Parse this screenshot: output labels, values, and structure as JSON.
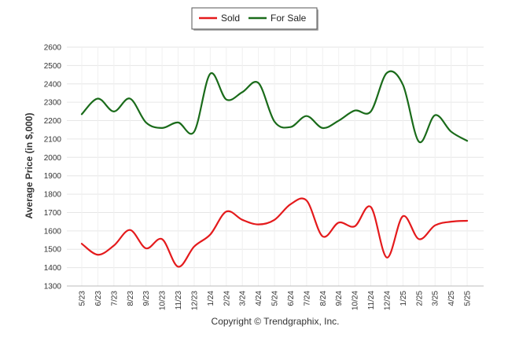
{
  "chart_data": {
    "type": "line",
    "ylabel": "Average Price (in $,000)",
    "ylim": [
      1300,
      2600
    ],
    "yticks": [
      1300,
      1400,
      1500,
      1600,
      1700,
      1800,
      1900,
      2000,
      2100,
      2200,
      2300,
      2400,
      2500,
      2600
    ],
    "ytick_labels": [
      "1300",
      "1400",
      "1500",
      "1600",
      "1700",
      "1800",
      "1900",
      "2000",
      "2100",
      "2200",
      "2300",
      "2400",
      "2500",
      "2600"
    ],
    "grid": true,
    "legend_position": "top-center",
    "categories": [
      "5/23",
      "6/23",
      "7/23",
      "8/23",
      "9/23",
      "10/23",
      "11/23",
      "12/23",
      "1/24",
      "2/24",
      "3/24",
      "4/24",
      "5/24",
      "6/24",
      "7/24",
      "8/24",
      "9/24",
      "10/24",
      "11/24",
      "12/24",
      "1/25",
      "2/25",
      "3/25",
      "4/25",
      "5/25"
    ],
    "series": [
      {
        "name": "Sold",
        "color": "#e41a1c",
        "values": [
          1530,
          1470,
          1520,
          1605,
          1505,
          1555,
          1405,
          1515,
          1580,
          1705,
          1660,
          1635,
          1660,
          1745,
          1765,
          1570,
          1645,
          1625,
          1730,
          1455,
          1680,
          1555,
          1630,
          1650,
          1655
        ]
      },
      {
        "name": "For Sale",
        "color": "#1a6b1a",
        "values": [
          2235,
          2320,
          2250,
          2320,
          2190,
          2160,
          2190,
          2140,
          2455,
          2315,
          2355,
          2405,
          2195,
          2165,
          2225,
          2160,
          2200,
          2255,
          2250,
          2460,
          2395,
          2085,
          2230,
          2140,
          2090
        ]
      }
    ],
    "copyright": "Copyright © Trendgraphix, Inc."
  }
}
